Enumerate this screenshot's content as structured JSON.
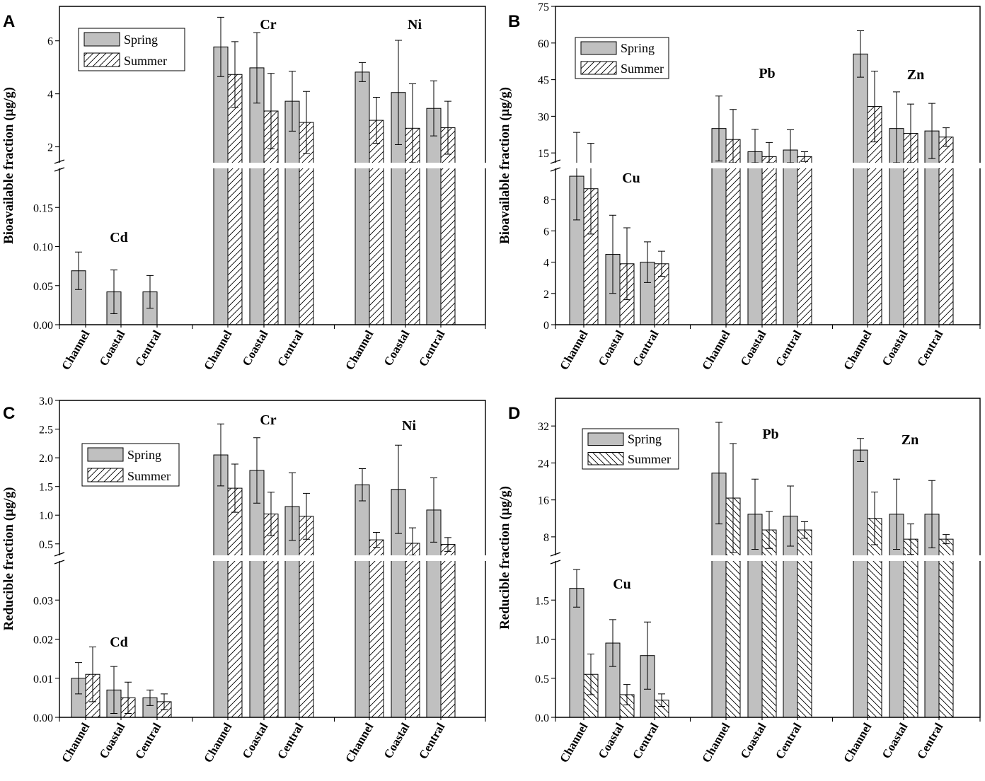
{
  "chart_data": [
    {
      "panel": "A",
      "type": "bar",
      "ylabel": "Bioavailable fraction (μg/g)",
      "legend": {
        "spring": "Spring",
        "summer": "Summer",
        "position": "top-left"
      },
      "summer_hatch": "forward",
      "lower": {
        "ylim": [
          0,
          0.2
        ],
        "ticks": [
          0.0,
          0.05,
          0.1,
          0.15
        ],
        "tick_labels": [
          "0.00",
          "0.05",
          "0.10",
          "0.15"
        ]
      },
      "upper": {
        "ylim": [
          1.4,
          7.3
        ],
        "ticks": [
          2,
          4,
          6
        ],
        "tick_labels": [
          "2",
          "4",
          "6"
        ]
      },
      "groups": [
        {
          "metal": "Cd",
          "axis": "lower",
          "categories": [
            "Channel",
            "Coastal",
            "Central"
          ],
          "spring": [
            0.069,
            0.042,
            0.042
          ],
          "spring_err": [
            0.024,
            0.028,
            0.021
          ],
          "summer": [
            null,
            null,
            null
          ],
          "summer_err": [
            null,
            null,
            null
          ]
        },
        {
          "metal": "Cr",
          "axis": "upper",
          "categories": [
            "Channel",
            "Coastal",
            "Central"
          ],
          "spring": [
            5.77,
            4.98,
            3.72
          ],
          "spring_err": [
            1.12,
            1.33,
            1.13
          ],
          "summer": [
            4.73,
            3.35,
            2.92
          ],
          "summer_err": [
            1.24,
            1.42,
            1.17
          ]
        },
        {
          "metal": "Ni",
          "axis": "upper",
          "categories": [
            "Channel",
            "Coastal",
            "Central"
          ],
          "spring": [
            4.82,
            4.05,
            3.45
          ],
          "spring_err": [
            0.36,
            1.97,
            1.04
          ],
          "summer": [
            3.0,
            2.7,
            2.72
          ],
          "summer_err": [
            0.87,
            1.68,
            1.0
          ]
        }
      ]
    },
    {
      "panel": "B",
      "type": "bar",
      "ylabel": "Bioavailable fraction (μg/g)",
      "legend": {
        "spring": "Spring",
        "summer": "Summer",
        "position": "top-left"
      },
      "summer_hatch": "forward",
      "lower": {
        "ylim": [
          0,
          10
        ],
        "ticks": [
          0,
          2,
          4,
          6,
          8
        ],
        "tick_labels": [
          "0",
          "2",
          "4",
          "6",
          "8"
        ]
      },
      "upper": {
        "ylim": [
          11,
          75
        ],
        "ticks": [
          15,
          30,
          45,
          60,
          75
        ],
        "tick_labels": [
          "15",
          "30",
          "45",
          "60",
          "75"
        ]
      },
      "groups": [
        {
          "metal": "Cu",
          "axis": "lower",
          "categories": [
            "Channel",
            "Coastal",
            "Central"
          ],
          "spring": [
            9.5,
            4.5,
            4.0
          ],
          "spring_err": [
            2.8,
            2.5,
            1.3
          ],
          "summer": [
            8.7,
            3.9,
            3.9
          ],
          "summer_err": [
            2.9,
            2.3,
            0.8
          ]
        },
        {
          "metal": "Pb",
          "axis": "upper",
          "categories": [
            "Channel",
            "Coastal",
            "Central"
          ],
          "spring": [
            25.0,
            15.5,
            16.2
          ],
          "spring_err": [
            13.3,
            9.2,
            8.3
          ],
          "summer": [
            20.5,
            13.5,
            13.5
          ],
          "summer_err": [
            12.3,
            5.8,
            2.0
          ]
        },
        {
          "metal": "Zn",
          "axis": "upper",
          "categories": [
            "Channel",
            "Coastal",
            "Central"
          ],
          "spring": [
            55.5,
            25.0,
            24.0
          ],
          "spring_err": [
            9.5,
            15.0,
            11.3
          ],
          "summer": [
            34.0,
            23.0,
            21.5
          ],
          "summer_err": [
            14.5,
            12.0,
            3.8
          ]
        }
      ]
    },
    {
      "panel": "C",
      "type": "bar",
      "ylabel": "Reducible fraction (μg/g)",
      "legend": {
        "spring": "Spring",
        "summer": "Summer",
        "position": "top-left"
      },
      "summer_hatch": "forward",
      "lower": {
        "ylim": [
          0,
          0.04
        ],
        "ticks": [
          0.0,
          0.01,
          0.02,
          0.03
        ],
        "tick_labels": [
          "0.00",
          "0.01",
          "0.02",
          "0.03"
        ]
      },
      "upper": {
        "ylim": [
          0.3,
          3.0
        ],
        "ticks": [
          0.5,
          1.0,
          1.5,
          2.0,
          2.5,
          3.0
        ],
        "tick_labels": [
          "0.5",
          "1.0",
          "1.5",
          "2.0",
          "2.5",
          "3.0"
        ]
      },
      "groups": [
        {
          "metal": "Cd",
          "axis": "lower",
          "categories": [
            "Channel",
            "Coastal",
            "Central"
          ],
          "spring": [
            0.01,
            0.007,
            0.005
          ],
          "spring_err": [
            0.004,
            0.006,
            0.002
          ],
          "summer": [
            0.011,
            0.005,
            0.004
          ],
          "summer_err": [
            0.007,
            0.004,
            0.002
          ]
        },
        {
          "metal": "Cr",
          "axis": "upper",
          "categories": [
            "Channel",
            "Coastal",
            "Central"
          ],
          "spring": [
            2.05,
            1.78,
            1.15
          ],
          "spring_err": [
            0.54,
            0.57,
            0.59
          ],
          "summer": [
            1.47,
            1.02,
            0.98
          ],
          "summer_err": [
            0.42,
            0.38,
            0.4
          ]
        },
        {
          "metal": "Ni",
          "axis": "upper",
          "categories": [
            "Channel",
            "Coastal",
            "Central"
          ],
          "spring": [
            1.53,
            1.45,
            1.09
          ],
          "spring_err": [
            0.28,
            0.77,
            0.56
          ],
          "summer": [
            0.57,
            0.51,
            0.49
          ],
          "summer_err": [
            0.13,
            0.27,
            0.12
          ]
        }
      ]
    },
    {
      "panel": "D",
      "type": "bar",
      "ylabel": "Reducible fraction (μg/g)",
      "legend": {
        "spring": "Spring",
        "summer": "Summer",
        "position": "top-left"
      },
      "summer_hatch": "backward",
      "lower": {
        "ylim": [
          0,
          2.0
        ],
        "ticks": [
          0.0,
          0.5,
          1.0,
          1.5
        ],
        "tick_labels": [
          "0.0",
          "0.5",
          "1.0",
          "1.5"
        ]
      },
      "upper": {
        "ylim": [
          4,
          38
        ],
        "ticks": [
          8,
          16,
          24,
          32
        ],
        "tick_labels": [
          "8",
          "16",
          "24",
          "32"
        ]
      },
      "groups": [
        {
          "metal": "Cu",
          "axis": "lower",
          "categories": [
            "Channel",
            "Coastal",
            "Central"
          ],
          "spring": [
            1.65,
            0.95,
            0.79
          ],
          "spring_err": [
            0.24,
            0.3,
            0.43
          ],
          "summer": [
            0.55,
            0.29,
            0.22
          ],
          "summer_err": [
            0.26,
            0.13,
            0.08
          ]
        },
        {
          "metal": "Pb",
          "axis": "upper",
          "categories": [
            "Channel",
            "Coastal",
            "Central"
          ],
          "spring": [
            21.8,
            12.9,
            12.5
          ],
          "spring_err": [
            11.0,
            7.6,
            6.5
          ],
          "summer": [
            16.4,
            9.5,
            9.5
          ],
          "summer_err": [
            11.8,
            4.0,
            1.8
          ]
        },
        {
          "metal": "Zn",
          "axis": "upper",
          "categories": [
            "Channel",
            "Coastal",
            "Central"
          ],
          "spring": [
            26.8,
            12.9,
            12.9
          ],
          "spring_err": [
            2.5,
            7.6,
            7.3
          ],
          "summer": [
            12.0,
            7.5,
            7.5
          ],
          "summer_err": [
            5.7,
            3.3,
            1.0
          ]
        }
      ]
    }
  ]
}
